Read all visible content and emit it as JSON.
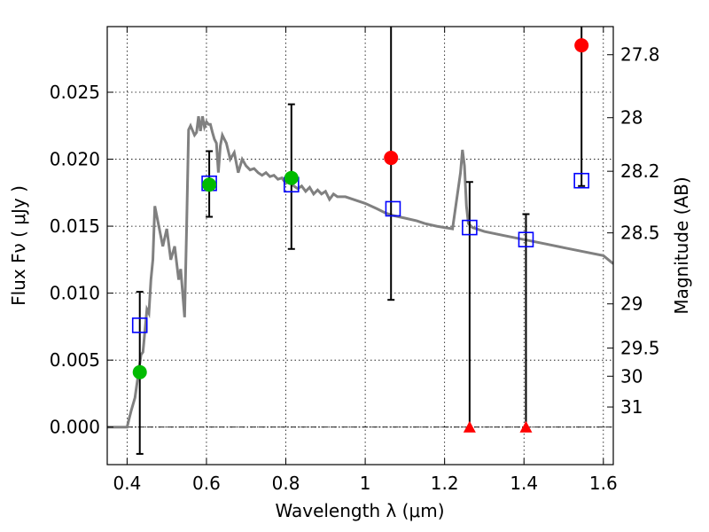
{
  "chart_data": {
    "type": "line",
    "xlabel": "Wavelength  λ (μm)",
    "ylabel": "Flux  Fν  ( μJy )",
    "ylabel_right": "Magnitude (AB)",
    "xlim": [
      0.35,
      1.625
    ],
    "ylim": [
      -0.0028,
      0.0299
    ],
    "x_ticks": [
      0.4,
      0.6,
      0.8,
      1.0,
      1.2,
      1.4,
      1.6
    ],
    "x_tick_labels": [
      "0.4",
      "0.6",
      "0.8",
      "1",
      "1.2",
      "1.4",
      "1.6"
    ],
    "y_ticks": [
      0.0,
      0.005,
      0.01,
      0.015,
      0.02,
      0.025
    ],
    "y_tick_labels": [
      "0.000",
      "0.005",
      "0.010",
      "0.015",
      "0.020",
      "0.025"
    ],
    "right_ticks": [
      {
        "label": "27.8",
        "flux": 0.0278
      },
      {
        "label": "28",
        "flux": 0.0231
      },
      {
        "label": "28.2",
        "flux": 0.0191
      },
      {
        "label": "28.5",
        "flux": 0.0145
      },
      {
        "label": "29",
        "flux": 0.0092
      },
      {
        "label": "29.5",
        "flux": 0.0059
      },
      {
        "label": "30",
        "flux": 0.0038
      },
      {
        "label": "31",
        "flux": 0.0015
      }
    ],
    "grid": true,
    "colors": {
      "template": "#808080",
      "model": "#0000ff",
      "detection_green": "#00bb00",
      "detection_red": "#ff0000",
      "upper_limit": "#ff0000",
      "errorbar": "#000000",
      "zero_line": "#000000"
    },
    "template_spectrum": {
      "x": [
        0.35,
        0.4,
        0.405,
        0.41,
        0.42,
        0.43,
        0.435,
        0.44,
        0.45,
        0.455,
        0.46,
        0.465,
        0.47,
        0.48,
        0.49,
        0.5,
        0.51,
        0.52,
        0.53,
        0.535,
        0.54,
        0.545,
        0.55,
        0.555,
        0.56,
        0.57,
        0.575,
        0.58,
        0.585,
        0.59,
        0.595,
        0.6,
        0.605,
        0.61,
        0.615,
        0.62,
        0.625,
        0.63,
        0.635,
        0.64,
        0.645,
        0.65,
        0.66,
        0.67,
        0.68,
        0.69,
        0.7,
        0.71,
        0.72,
        0.73,
        0.74,
        0.75,
        0.76,
        0.77,
        0.78,
        0.79,
        0.8,
        0.81,
        0.82,
        0.83,
        0.84,
        0.85,
        0.86,
        0.87,
        0.88,
        0.89,
        0.9,
        0.91,
        0.92,
        0.93,
        0.95,
        0.97,
        1.0,
        1.03,
        1.05,
        1.07,
        1.1,
        1.13,
        1.15,
        1.18,
        1.2,
        1.22,
        1.24,
        1.245,
        1.25,
        1.255,
        1.26,
        1.27,
        1.3,
        1.35,
        1.4,
        1.45,
        1.5,
        1.55,
        1.6,
        1.625
      ],
      "y": [
        0.0,
        0.0,
        0.0006,
        0.0012,
        0.0022,
        0.0043,
        0.0054,
        0.0056,
        0.0088,
        0.0085,
        0.011,
        0.0125,
        0.0165,
        0.015,
        0.0135,
        0.0148,
        0.0125,
        0.0135,
        0.011,
        0.0118,
        0.01,
        0.0082,
        0.015,
        0.0222,
        0.0225,
        0.0218,
        0.022,
        0.0232,
        0.0221,
        0.0232,
        0.0224,
        0.0228,
        0.0226,
        0.0226,
        0.022,
        0.0215,
        0.0212,
        0.019,
        0.021,
        0.0218,
        0.0215,
        0.0212,
        0.02,
        0.0205,
        0.019,
        0.02,
        0.0195,
        0.0192,
        0.0193,
        0.019,
        0.0188,
        0.019,
        0.0187,
        0.0188,
        0.0185,
        0.0186,
        0.0182,
        0.0184,
        0.018,
        0.0178,
        0.018,
        0.0176,
        0.0179,
        0.0174,
        0.0177,
        0.0174,
        0.0176,
        0.017,
        0.0174,
        0.0172,
        0.0172,
        0.017,
        0.0167,
        0.0163,
        0.016,
        0.0158,
        0.0156,
        0.0154,
        0.0152,
        0.015,
        0.0149,
        0.0148,
        0.019,
        0.0207,
        0.0195,
        0.0165,
        0.0152,
        0.0149,
        0.0146,
        0.0143,
        0.014,
        0.0137,
        0.0134,
        0.0131,
        0.0128,
        0.0122
      ]
    },
    "model_fluxes": {
      "x": [
        0.432,
        0.607,
        0.814,
        1.07,
        1.263,
        1.405,
        1.545
      ],
      "y": [
        0.0076,
        0.0182,
        0.0181,
        0.0163,
        0.0149,
        0.014,
        0.0184
      ]
    },
    "observed_detections": [
      {
        "x": 0.432,
        "y": 0.0041,
        "err_low": -0.002,
        "err_high": 0.0101,
        "color": "green"
      },
      {
        "x": 0.607,
        "y": 0.0181,
        "err_low": 0.0157,
        "err_high": 0.0206,
        "color": "green"
      },
      {
        "x": 0.814,
        "y": 0.0186,
        "err_low": 0.0133,
        "err_high": 0.0241,
        "color": "green"
      },
      {
        "x": 1.065,
        "y": 0.0201,
        "err_low": 0.0095,
        "err_high": 0.0305,
        "color": "red"
      },
      {
        "x": 1.545,
        "y": 0.0285,
        "err_low": 0.018,
        "err_high": 0.0305,
        "color": "red"
      }
    ],
    "upper_limits": [
      {
        "x": 1.263,
        "y": 0.0,
        "err_low": 0.0,
        "err_high": 0.0183
      },
      {
        "x": 1.405,
        "y": 0.0,
        "err_low": 0.0,
        "err_high": 0.0159
      }
    ]
  }
}
